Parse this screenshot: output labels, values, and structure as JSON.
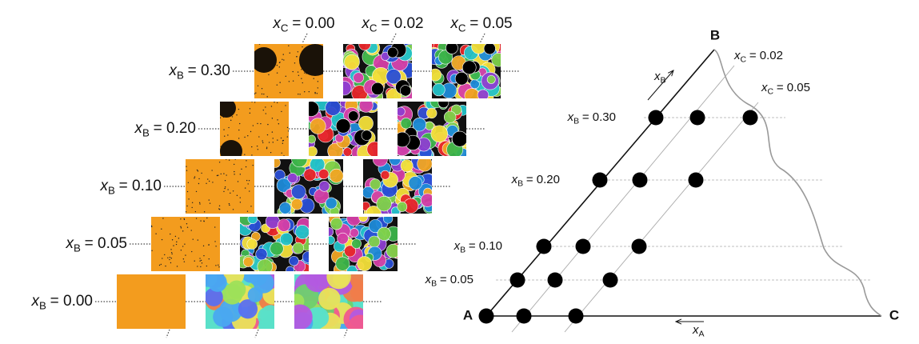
{
  "grid": {
    "columns": [
      {
        "var": "x",
        "sub": "C",
        "text": "= 0.00"
      },
      {
        "var": "x",
        "sub": "C",
        "text": "= 0.02"
      },
      {
        "var": "x",
        "sub": "C",
        "text": "= 0.05"
      }
    ],
    "rows": [
      {
        "var": "x",
        "sub": "B",
        "text": "= 0.30"
      },
      {
        "var": "x",
        "sub": "B",
        "text": "= 0.20"
      },
      {
        "var": "x",
        "sub": "B",
        "text": "= 0.10"
      },
      {
        "var": "x",
        "sub": "B",
        "text": "= 0.05"
      },
      {
        "var": "x",
        "sub": "B",
        "text": "= 0.00"
      }
    ]
  },
  "diagram": {
    "vertices": [
      "A",
      "B",
      "C"
    ],
    "axis_labels": [
      {
        "var": "x",
        "sub": "B"
      },
      {
        "var": "x",
        "sub": "A"
      }
    ],
    "column_labels": [
      {
        "var": "x",
        "sub": "C",
        "text": "= 0.02"
      },
      {
        "var": "x",
        "sub": "C",
        "text": "= 0.05"
      }
    ],
    "row_labels": [
      {
        "var": "x",
        "sub": "B",
        "text": "= 0.30"
      },
      {
        "var": "x",
        "sub": "B",
        "text": "= 0.20"
      },
      {
        "var": "x",
        "sub": "B",
        "text": "= 0.10"
      },
      {
        "var": "x",
        "sub": "B",
        "text": "= 0.05"
      }
    ]
  }
}
